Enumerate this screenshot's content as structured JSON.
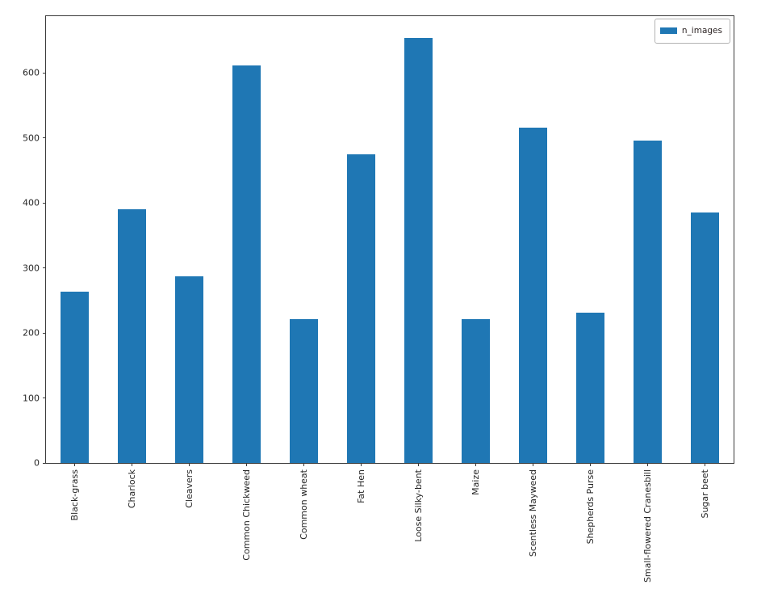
{
  "chart_data": {
    "type": "bar",
    "title": "",
    "xlabel": "",
    "ylabel": "",
    "categories": [
      "Black-grass",
      "Charlock",
      "Cleavers",
      "Common Chickweed",
      "Common wheat",
      "Fat Hen",
      "Loose Silky-bent",
      "Maize",
      "Scentless Mayweed",
      "Shepherds Purse",
      "Small-flowered Cranesbill",
      "Sugar beet"
    ],
    "series": [
      {
        "name": "n_images",
        "values": [
          263,
          390,
          287,
          611,
          221,
          475,
          654,
          221,
          516,
          231,
          496,
          385
        ],
        "color": "#1f77b4"
      }
    ],
    "ylim": [
      0,
      687
    ],
    "yticks": [
      0,
      100,
      200,
      300,
      400,
      500,
      600
    ],
    "xtick_rotation": 90,
    "grid": false,
    "legend": {
      "position": "upper-right",
      "entries": [
        "n_images"
      ]
    }
  },
  "colors": {
    "bar": "#1f77b4",
    "axis": "#3a3a3a",
    "tick_text": "#262626",
    "legend_border": "#b3b3b3",
    "background": "#ffffff"
  }
}
